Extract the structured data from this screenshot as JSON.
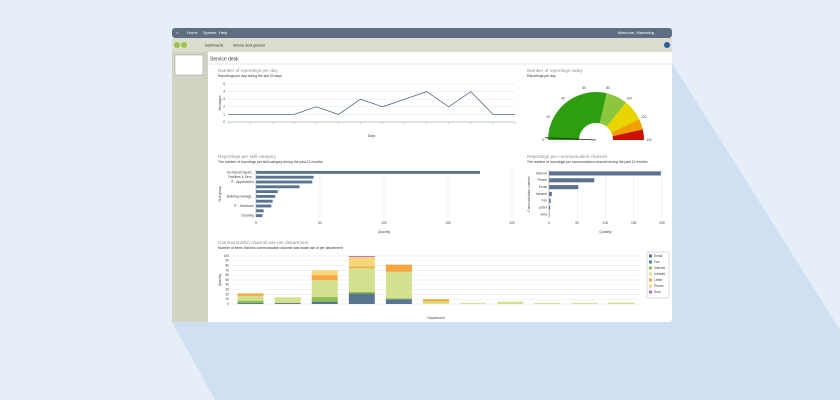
{
  "menu": [
    "Home",
    "System",
    "Help"
  ],
  "user": "Welcome, Marketing",
  "breadcrumbs": [
    "Dashboards",
    "Service desk general"
  ],
  "page_title": "Service desk",
  "chart_data": [
    {
      "type": "line",
      "title": "Number of reportings per day",
      "subtitle": "Reportings per day during the last 30 days",
      "ylabel": "Messages",
      "xlabel": "Days",
      "color": "#4f6a86",
      "categories": [
        null,
        null,
        null,
        null,
        null,
        null,
        null,
        null,
        null,
        null,
        null,
        null,
        null,
        null
      ],
      "values": [
        1,
        1,
        1,
        1,
        2,
        1,
        3,
        2,
        3,
        4,
        2,
        4,
        1,
        1
      ],
      "ylim": [
        0,
        5
      ],
      "yticks": [
        0,
        1,
        2,
        3,
        4,
        5
      ],
      "grid": true
    },
    {
      "type": "gauge",
      "title": "Number of reportings today",
      "subtitle": "Reportings per day",
      "value": 2,
      "lim": [
        0,
        140
      ],
      "ticks": [
        0,
        20,
        40,
        60,
        80,
        100,
        120,
        140
      ],
      "bands": [
        {
          "from": 0,
          "to": 80,
          "color": "#2e9e10"
        },
        {
          "from": 80,
          "to": 100,
          "color": "#8cc63c"
        },
        {
          "from": 100,
          "to": 120,
          "color": "#e8d400"
        },
        {
          "from": 120,
          "to": 130,
          "color": "#f0a000"
        },
        {
          "from": 130,
          "to": 140,
          "color": "#cc1100"
        }
      ]
    },
    {
      "type": "hbar",
      "title": "Reportings per skill category",
      "subtitle": "The number of reportings per skill category during the past 12 months",
      "ylabel": "Skill group",
      "xlabel": "Quantity",
      "color": "#5a7390",
      "categories": [
        "Technical Depart...",
        "Facilities & Serv...",
        "IT - Applications",
        null,
        null,
        "Building manage...",
        null,
        "IT - Hardware",
        null,
        "Cleaning"
      ],
      "values": [
        175,
        45,
        44,
        34,
        17,
        15,
        13,
        12,
        6,
        5
      ],
      "xlim": [
        0,
        200
      ],
      "xticks": [
        0,
        50,
        100,
        150,
        200
      ],
      "grid": true
    },
    {
      "type": "hbar",
      "title": "Reportings per communication channel",
      "subtitle": "The number of reportings per communication channel during the past 12 months",
      "ylabel": "Communication channel",
      "xlabel": "Quantity",
      "color": "#5a7390",
      "categories": [
        "Internet",
        "Phone",
        "Email",
        "Intranet",
        "Fax",
        "Letter",
        "Sms"
      ],
      "values": [
        198,
        80,
        52,
        5,
        3,
        2,
        1
      ],
      "xlim": [
        0,
        200
      ],
      "xticks": [
        0,
        50,
        100,
        150,
        200
      ],
      "grid": true
    },
    {
      "type": "stacked",
      "title": "Communication channel use per department",
      "subtitle": "Number of items that this communication channel was made use of per department",
      "ylabel": "Quantity",
      "xlabel": "Department",
      "categories": [
        null,
        null,
        null,
        null,
        null,
        null,
        null,
        null,
        null,
        null,
        null
      ],
      "series": [
        {
          "name": "Email",
          "color": "#5a7390",
          "values": [
            2,
            2,
            5,
            22,
            10,
            0,
            0,
            0,
            0,
            0,
            0
          ]
        },
        {
          "name": "Fax",
          "color": "#4a8ab0",
          "values": [
            0,
            0,
            0,
            0,
            0,
            0,
            0,
            0,
            0,
            0,
            0
          ]
        },
        {
          "name": "Internet",
          "color": "#8cc04a",
          "values": [
            5,
            0,
            10,
            3,
            2,
            0,
            0,
            0,
            0,
            0,
            0
          ]
        },
        {
          "name": "Intranet",
          "color": "#d3e08e",
          "values": [
            10,
            12,
            35,
            50,
            55,
            5,
            2,
            5,
            2,
            2,
            3
          ]
        },
        {
          "name": "Letter",
          "color": "#f5a640",
          "values": [
            5,
            0,
            10,
            3,
            15,
            5,
            0,
            0,
            0,
            0,
            0
          ]
        },
        {
          "name": "Phone",
          "color": "#f6d67a",
          "values": [
            0,
            0,
            10,
            20,
            0,
            0,
            0,
            0,
            0,
            0,
            0
          ]
        },
        {
          "name": "Sms",
          "color": "#c070c0",
          "values": [
            0,
            0,
            0,
            2,
            0,
            0,
            0,
            0,
            0,
            0,
            0
          ]
        }
      ],
      "ylim": [
        0,
        100
      ],
      "yticks": [
        0,
        10,
        20,
        30,
        40,
        50,
        60,
        70,
        80,
        90,
        100
      ],
      "grid": true
    }
  ]
}
